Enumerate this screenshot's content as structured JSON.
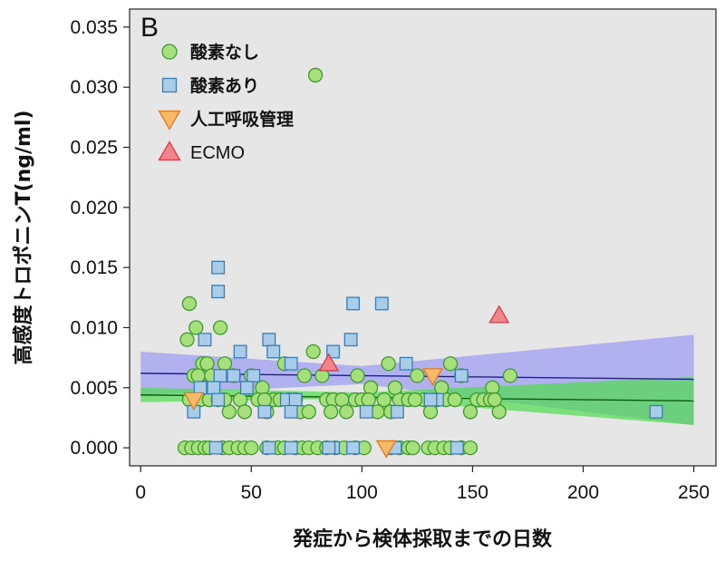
{
  "chart_data": {
    "type": "scatter",
    "panel_label": "B",
    "xlabel": "発症から検体採取までの日数",
    "ylabel": "高感度トロポニンT(ng/ml)",
    "xlim": [
      -5,
      260
    ],
    "ylim": [
      -0.0015,
      0.0365
    ],
    "xticks": [
      0,
      50,
      100,
      150,
      200,
      250
    ],
    "yticks": [
      0.0,
      0.005,
      0.01,
      0.015,
      0.02,
      0.025,
      0.03,
      0.035
    ],
    "ytick_labels": [
      "0.000",
      "0.005",
      "0.010",
      "0.015",
      "0.020",
      "0.025",
      "0.030",
      "0.035"
    ],
    "background": "#e6e6e6",
    "legend_position": "top-left",
    "series": [
      {
        "name": "酸素なし",
        "marker": "circle",
        "fill": "#a6e07a",
        "stroke": "#3c9a2e",
        "points": [
          [
            21,
            0.009
          ],
          [
            22,
            0.012
          ],
          [
            25,
            0.01
          ],
          [
            28,
            0.007
          ],
          [
            30,
            0.007
          ],
          [
            36,
            0.01
          ],
          [
            38,
            0.007
          ],
          [
            78,
            0.008
          ],
          [
            79,
            0.031
          ],
          [
            24,
            0.006
          ],
          [
            26,
            0.006
          ],
          [
            29,
            0.005
          ],
          [
            32,
            0.006
          ],
          [
            42,
            0.006
          ],
          [
            50,
            0.006
          ],
          [
            55,
            0.005
          ],
          [
            65,
            0.007
          ],
          [
            74,
            0.006
          ],
          [
            82,
            0.006
          ],
          [
            98,
            0.006
          ],
          [
            112,
            0.007
          ],
          [
            125,
            0.006
          ],
          [
            140,
            0.007
          ],
          [
            145,
            0.006
          ],
          [
            159,
            0.005
          ],
          [
            167,
            0.006
          ],
          [
            22,
            0.004
          ],
          [
            27,
            0.004
          ],
          [
            31,
            0.004
          ],
          [
            35,
            0.004
          ],
          [
            40,
            0.003
          ],
          [
            45,
            0.004
          ],
          [
            47,
            0.003
          ],
          [
            53,
            0.004
          ],
          [
            57,
            0.003
          ],
          [
            60,
            0.004
          ],
          [
            63,
            0.004
          ],
          [
            70,
            0.004
          ],
          [
            72,
            0.003
          ],
          [
            76,
            0.003
          ],
          [
            84,
            0.004
          ],
          [
            87,
            0.004
          ],
          [
            91,
            0.004
          ],
          [
            93,
            0.003
          ],
          [
            97,
            0.004
          ],
          [
            100,
            0.004
          ],
          [
            104,
            0.005
          ],
          [
            107,
            0.003
          ],
          [
            110,
            0.004
          ],
          [
            113,
            0.003
          ],
          [
            117,
            0.004
          ],
          [
            121,
            0.004
          ],
          [
            128,
            0.004
          ],
          [
            131,
            0.003
          ],
          [
            134,
            0.004
          ],
          [
            138,
            0.004
          ],
          [
            142,
            0.004
          ],
          [
            149,
            0.003
          ],
          [
            152,
            0.004
          ],
          [
            155,
            0.004
          ],
          [
            158,
            0.004
          ],
          [
            162,
            0.003
          ],
          [
            86,
            0.003
          ],
          [
            115,
            0.005
          ],
          [
            124,
            0.004
          ],
          [
            136,
            0.005
          ],
          [
            160,
            0.004
          ],
          [
            103,
            0.004
          ],
          [
            67,
            0.004
          ],
          [
            56,
            0.004
          ],
          [
            38,
            0.004
          ],
          [
            20,
            0
          ],
          [
            23,
            0
          ],
          [
            26,
            0
          ],
          [
            29,
            0
          ],
          [
            31,
            0
          ],
          [
            37,
            0
          ],
          [
            40,
            0
          ],
          [
            44,
            0
          ],
          [
            47,
            0
          ],
          [
            50,
            0
          ],
          [
            57,
            0
          ],
          [
            62,
            0
          ],
          [
            65,
            0
          ],
          [
            70,
            0
          ],
          [
            73,
            0
          ],
          [
            76,
            0
          ],
          [
            80,
            0
          ],
          [
            84,
            0
          ],
          [
            88,
            0
          ],
          [
            92,
            0
          ],
          [
            97,
            0
          ],
          [
            101,
            0
          ],
          [
            113,
            0
          ],
          [
            117,
            0
          ],
          [
            121,
            0
          ],
          [
            123,
            0
          ],
          [
            130,
            0
          ],
          [
            133,
            0
          ],
          [
            137,
            0
          ],
          [
            140,
            0
          ],
          [
            145,
            0
          ],
          [
            149,
            0
          ]
        ]
      },
      {
        "name": "酸素あり",
        "marker": "square",
        "fill": "#a9cde8",
        "stroke": "#3a7db4",
        "points": [
          [
            35,
            0.015
          ],
          [
            35,
            0.013
          ],
          [
            29,
            0.009
          ],
          [
            58,
            0.009
          ],
          [
            87,
            0.008
          ],
          [
            95,
            0.009
          ],
          [
            96,
            0.012
          ],
          [
            109,
            0.012
          ],
          [
            45,
            0.008
          ],
          [
            60,
            0.008
          ],
          [
            68,
            0.007
          ],
          [
            120,
            0.007
          ],
          [
            145,
            0.006
          ],
          [
            36,
            0.006
          ],
          [
            51,
            0.006
          ],
          [
            42,
            0.006
          ],
          [
            27,
            0.005
          ],
          [
            33,
            0.005
          ],
          [
            48,
            0.005
          ],
          [
            66,
            0.004
          ],
          [
            70,
            0.004
          ],
          [
            134,
            0.004
          ],
          [
            131,
            0.004
          ],
          [
            102,
            0.003
          ],
          [
            116,
            0.003
          ],
          [
            68,
            0.003
          ],
          [
            56,
            0.003
          ],
          [
            24,
            0.003
          ],
          [
            35,
            0.004
          ],
          [
            233,
            0.003
          ],
          [
            34,
            0
          ],
          [
            58,
            0
          ],
          [
            68,
            0
          ],
          [
            87,
            0
          ],
          [
            96,
            0
          ],
          [
            115,
            0
          ],
          [
            143,
            0
          ],
          [
            85,
            0
          ]
        ]
      },
      {
        "name": "人工呼吸管理",
        "marker": "triangle-down",
        "fill": "#f8b968",
        "stroke": "#e07a1f",
        "points": [
          [
            24,
            0.004
          ],
          [
            111,
            0
          ],
          [
            132,
            0.006
          ]
        ]
      },
      {
        "name": "ECMO",
        "marker": "triangle-up",
        "fill": "#f2848c",
        "stroke": "#d83a45",
        "points": [
          [
            85,
            0.007
          ],
          [
            162,
            0.011
          ]
        ]
      }
    ],
    "fits": [
      {
        "series": "酸素あり",
        "line_color": "#1f1f8c",
        "band_color": "#9a9af2",
        "x": [
          0,
          250
        ],
        "y": [
          0.0062,
          0.0057
        ],
        "lower": [
          [
            0,
            0.0044
          ],
          [
            100,
            0.0053
          ],
          [
            250,
            0.0019
          ]
        ],
        "upper": [
          [
            0,
            0.008
          ],
          [
            100,
            0.0068
          ],
          [
            250,
            0.0094
          ]
        ]
      },
      {
        "series": "酸素なし",
        "line_color": "#0b5a12",
        "band_color": "#4fdc4f",
        "x": [
          0,
          250
        ],
        "y": [
          0.0044,
          0.0039
        ],
        "lower": [
          [
            0,
            0.0038
          ],
          [
            100,
            0.0041
          ],
          [
            250,
            0.0019
          ]
        ],
        "upper": [
          [
            0,
            0.005
          ],
          [
            100,
            0.0046
          ],
          [
            250,
            0.0059
          ]
        ]
      }
    ]
  }
}
